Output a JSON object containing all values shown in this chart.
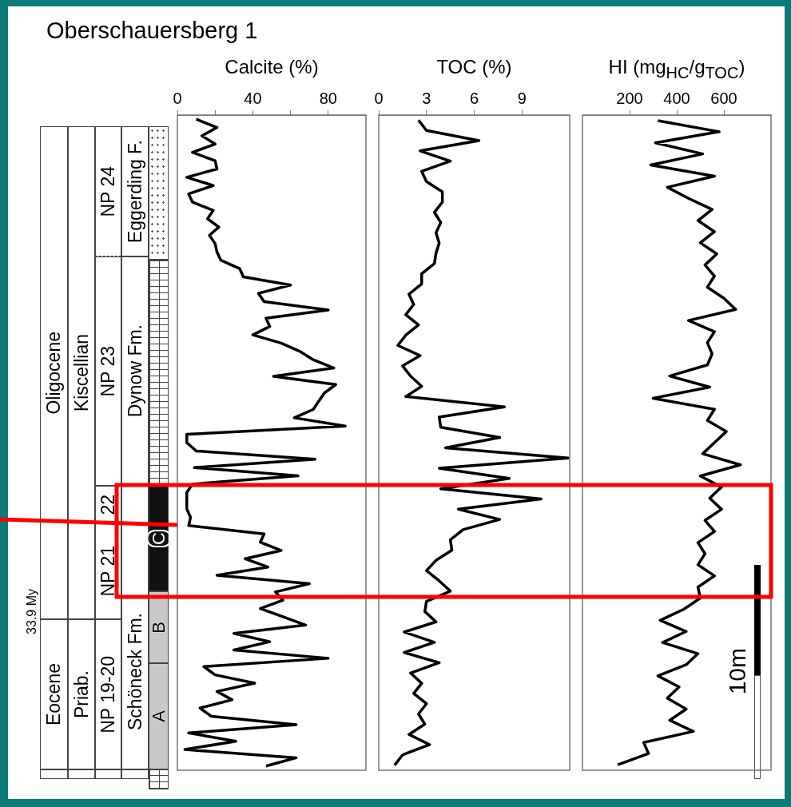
{
  "chart_data": [
    {
      "type": "other",
      "title": "Oberschauersberg 1",
      "annotations": [
        "Oligocene",
        "Eocene",
        "Kiscellian",
        "Priab.",
        "NP 24",
        "NP 23",
        "22",
        "NP 21",
        "NP 19-20",
        "Eggerding F.",
        "Dynow Fm.",
        "Schöneck Fm.",
        "C",
        "B",
        "A",
        "33.9 My",
        "10m"
      ]
    },
    {
      "type": "line",
      "orientation": "horizontal",
      "xlabel": "Calcite (%)",
      "color": "#000000",
      "marker": "none",
      "tick_labels": "x",
      "xlim": [
        0,
        100
      ],
      "xticks": [
        0,
        {
          "value": 20,
          "label": null
        },
        40,
        {
          "value": 60,
          "label": null
        },
        80
      ],
      "categories": [
        null,
        null,
        null,
        null,
        null,
        null,
        null,
        null,
        null,
        null,
        null,
        null,
        null,
        null,
        null,
        null,
        null,
        null,
        null,
        null,
        null,
        null,
        null,
        null,
        null,
        null,
        null,
        null,
        null,
        null,
        null,
        null,
        null,
        null,
        null,
        null,
        null,
        null,
        null,
        null,
        null,
        null,
        null,
        null,
        null,
        null,
        null,
        null,
        null,
        null,
        null,
        null,
        null,
        null,
        null,
        null,
        null,
        null,
        null,
        null,
        null,
        null,
        null,
        null,
        null,
        null,
        null,
        null,
        null,
        null,
        null,
        null,
        null,
        null,
        null,
        null,
        null,
        null,
        null
      ],
      "values": [
        10,
        21,
        13,
        20,
        8,
        20,
        21,
        5,
        19,
        6,
        8,
        19,
        16,
        22,
        17,
        20,
        21,
        23,
        33,
        35,
        60,
        43,
        46,
        80,
        47,
        49,
        40,
        55,
        65,
        72,
        83,
        51,
        84,
        78,
        75,
        72,
        62,
        89,
        5,
        5,
        10,
        73,
        9,
        64,
        8,
        5,
        5,
        5,
        7,
        6,
        46,
        44,
        55,
        36,
        48,
        21,
        70,
        52,
        56,
        44,
        56,
        68,
        30,
        49,
        30,
        80,
        14,
        20,
        41,
        21,
        29,
        12,
        18,
        63,
        6,
        31,
        4,
        63,
        47
      ]
    },
    {
      "type": "line",
      "orientation": "horizontal",
      "xlabel": "TOC (%)",
      "color": "#000000",
      "marker": "none",
      "tick_labels": "x",
      "xlim": [
        0,
        12
      ],
      "xticks": [
        0,
        3,
        6,
        9
      ],
      "categories": [
        null,
        null,
        null,
        null,
        null,
        null,
        null,
        null,
        null,
        null,
        null,
        null,
        null,
        null,
        null,
        null,
        null,
        null,
        null,
        null,
        null,
        null,
        null,
        null,
        null,
        null,
        null,
        null,
        null,
        null,
        null,
        null,
        null,
        null,
        null,
        null,
        null,
        null,
        null,
        null,
        null,
        null,
        null,
        null,
        null,
        null,
        null,
        null,
        null,
        null,
        null,
        null,
        null,
        null,
        null,
        null,
        null,
        null,
        null,
        null,
        null,
        null,
        null,
        null
      ],
      "values": [
        2.5,
        3,
        6.3,
        2.6,
        4.5,
        2.7,
        3,
        4,
        4,
        3.5,
        3.9,
        3.6,
        3.8,
        3.6,
        3.5,
        2.7,
        2.7,
        1.9,
        2.2,
        1.7,
        2.5,
        1.7,
        1.2,
        2.6,
        1.5,
        2,
        2.7,
        1.7,
        7.9,
        3.8,
        3.9,
        7.6,
        4.2,
        11.9,
        3.8,
        8.2,
        3.9,
        10.2,
        5,
        7.6,
        5.3,
        4.5,
        4.6,
        3.6,
        3,
        3.8,
        4.5,
        3,
        2.9,
        3.6,
        1.6,
        3.5,
        1.6,
        3.8,
        2,
        2.7,
        2.2,
        3,
        2.5,
        2.9,
        1.9,
        3.2,
        1.5,
        1
      ]
    },
    {
      "type": "line",
      "orientation": "horizontal",
      "xlabel": "HI (mg$_{HC}$/g$_{TOC}$)",
      "color": "#000000",
      "marker": "none",
      "tick_labels": "x",
      "xlim": [
        0,
        800
      ],
      "xticks": [
        200,
        400,
        600
      ],
      "categories": [
        null,
        null,
        null,
        null,
        null,
        null,
        null,
        null,
        null,
        null,
        null,
        null,
        null,
        null,
        null,
        null,
        null,
        null,
        null,
        null,
        null,
        null,
        null,
        null,
        null,
        null,
        null,
        null,
        null,
        null,
        null,
        null,
        null,
        null,
        null,
        null,
        null,
        null,
        null,
        null,
        null,
        null,
        null,
        null,
        null,
        null,
        null,
        null,
        null,
        null,
        null,
        null,
        null,
        null,
        null,
        null,
        null,
        null,
        null
      ],
      "values": [
        320,
        580,
        310,
        510,
        290,
        560,
        360,
        450,
        550,
        490,
        560,
        500,
        570,
        520,
        560,
        530,
        600,
        650,
        450,
        560,
        530,
        550,
        530,
        370,
        540,
        300,
        560,
        530,
        610,
        560,
        510,
        670,
        500,
        590,
        540,
        590,
        520,
        560,
        490,
        520,
        490,
        560,
        490,
        500,
        430,
        330,
        440,
        340,
        490,
        440,
        320,
        410,
        360,
        440,
        370,
        470,
        260,
        280,
        150
      ]
    }
  ]
}
